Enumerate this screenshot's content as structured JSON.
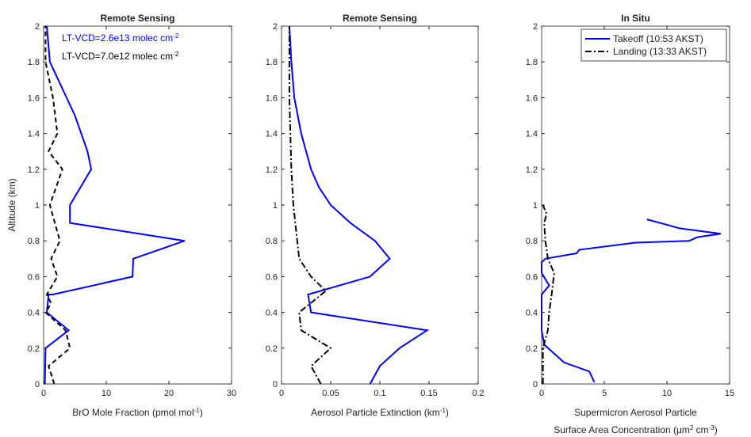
{
  "chart_data": [
    {
      "type": "line",
      "title": "Remote Sensing",
      "ylabel": "Altitude (km)",
      "xlabel": [
        [
          "BrO Mole Fraction (pmol mol",
          "-1",
          ")"
        ]
      ],
      "xlim": [
        0,
        30
      ],
      "xticks": [
        0,
        10,
        20,
        30
      ],
      "ylim": [
        0,
        2
      ],
      "yticks": [
        0,
        0.2,
        0.4,
        0.6,
        0.8,
        1,
        1.2,
        1.4,
        1.6,
        1.8,
        2
      ],
      "annotations": [
        {
          "parts": [
            "LT-VCD=2.6e13 molec cm",
            "-2"
          ],
          "color": "#0000ff"
        },
        {
          "parts": [
            "LT-VCD=7.0e12 molec cm",
            "-2"
          ],
          "color": "#000000"
        }
      ],
      "series": [
        {
          "color": "#0000ff",
          "linestyle": "solid",
          "x": [
            0.2,
            0.3,
            4,
            0.5,
            0.8,
            1.5,
            14.2,
            14.3,
            22.5,
            4.2,
            4.2,
            7.6,
            7,
            5,
            1,
            0.5
          ],
          "y": [
            0,
            0.2,
            0.3,
            0.4,
            0.5,
            0.5,
            0.6,
            0.7,
            0.8,
            0.9,
            1.0,
            1.2,
            1.3,
            1.5,
            1.8,
            2
          ]
        },
        {
          "color": "#000000",
          "linestyle": "dashed",
          "x": [
            1.7,
            0.8,
            4.2,
            3.5,
            0.3,
            1.2,
            0.5,
            2.2,
            1.2,
            2.6,
            1.0,
            2.0,
            3,
            0.8,
            2.2,
            1.5,
            0.3,
            0.3
          ],
          "y": [
            0,
            0.1,
            0.2,
            0.3,
            0.4,
            0.45,
            0.5,
            0.6,
            0.7,
            0.8,
            1.0,
            1.1,
            1.2,
            1.3,
            1.4,
            1.6,
            1.8,
            2
          ]
        }
      ]
    },
    {
      "type": "line",
      "title": "Remote Sensing",
      "xlabel": [
        [
          "Aerosol Particle Extinction (km",
          "-1",
          ")"
        ]
      ],
      "xlim": [
        0,
        0.2
      ],
      "xticks": [
        0,
        0.05,
        0.1,
        0.15,
        0.2
      ],
      "ylim": [
        0,
        2
      ],
      "yticks": [
        0,
        0.2,
        0.4,
        0.6,
        0.8,
        1,
        1.2,
        1.4,
        1.6,
        1.8,
        2
      ],
      "series": [
        {
          "color": "#0000ff",
          "linestyle": "solid",
          "x": [
            0.09,
            0.1,
            0.12,
            0.148,
            0.03,
            0.027,
            0.09,
            0.11,
            0.095,
            0.07,
            0.05,
            0.038,
            0.03,
            0.02,
            0.013,
            0.01,
            0.008
          ],
          "y": [
            0,
            0.1,
            0.2,
            0.3,
            0.4,
            0.5,
            0.6,
            0.7,
            0.8,
            0.9,
            1.0,
            1.1,
            1.2,
            1.4,
            1.6,
            1.8,
            2
          ]
        },
        {
          "color": "#000000",
          "linestyle": "dashdot",
          "x": [
            0.04,
            0.03,
            0.05,
            0.02,
            0.018,
            0.045,
            0.03,
            0.018,
            0.016,
            0.012,
            0.01,
            0.008,
            0.008
          ],
          "y": [
            0,
            0.1,
            0.2,
            0.3,
            0.4,
            0.52,
            0.6,
            0.7,
            0.8,
            1.0,
            1.2,
            1.6,
            2
          ]
        }
      ]
    },
    {
      "type": "line",
      "title": "In Situ",
      "xlabel": [
        [
          "Supermicron Aerosol Particle"
        ],
        [
          "Surface Area Concentration (μm",
          "2",
          " cm",
          "-3",
          ")"
        ]
      ],
      "xlim": [
        0,
        15
      ],
      "xticks": [
        0,
        5,
        10,
        15
      ],
      "ylim": [
        0,
        2
      ],
      "yticks": [
        0,
        0.2,
        0.4,
        0.6,
        0.8,
        1,
        1.2,
        1.4,
        1.6,
        1.8,
        2
      ],
      "legend": "northeast",
      "series": [
        {
          "name": "Takeoff (10:53 AKST)",
          "color": "#0000ff",
          "linestyle": "solid",
          "x": [
            4.2,
            3.8,
            1.8,
            1,
            0.2,
            0,
            0,
            0.6,
            0,
            0,
            0.3,
            2.8,
            3,
            7.5,
            11.8,
            12.4,
            14.3,
            11,
            10,
            8.4
          ],
          "y": [
            0.01,
            0.07,
            0.12,
            0.17,
            0.22,
            0.3,
            0.5,
            0.55,
            0.62,
            0.68,
            0.7,
            0.73,
            0.75,
            0.79,
            0.8,
            0.82,
            0.84,
            0.87,
            0.89,
            0.92
          ]
        },
        {
          "name": "Landing (13:33 AKST)",
          "color": "#000000",
          "linestyle": "dashdot",
          "x": [
            0.1,
            0.1,
            0.5,
            0.6,
            0.8,
            1,
            0.5,
            0.3,
            0.2,
            0.4,
            0.1
          ],
          "y": [
            0,
            0.2,
            0.3,
            0.4,
            0.5,
            0.62,
            0.7,
            0.8,
            0.9,
            0.95,
            1.0
          ]
        }
      ]
    }
  ]
}
